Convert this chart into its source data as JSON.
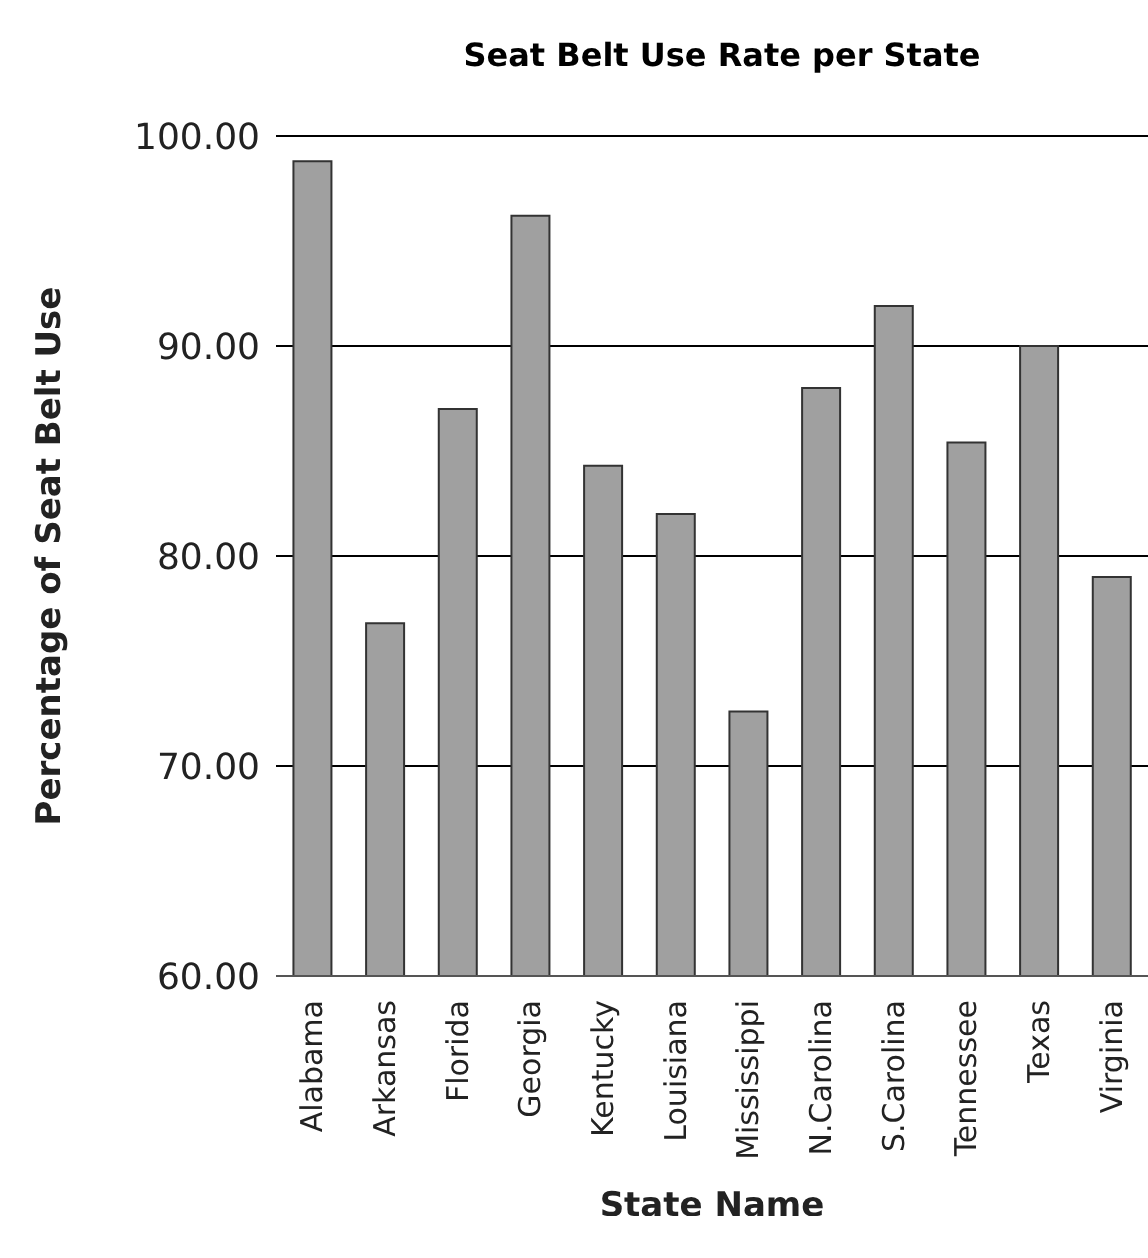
{
  "chart_data": {
    "type": "bar",
    "title": "Seat Belt Use Rate per State",
    "xlabel": "State Name",
    "ylabel": "Percentage of Seat Belt Use",
    "categories": [
      "Alabama",
      "Arkansas",
      "Florida",
      "Georgia",
      "Kentucky",
      "Louisiana",
      "Mississippi",
      "N.Carolina",
      "S.Carolina",
      "Tennessee",
      "Texas",
      "Virginia"
    ],
    "values": [
      98.8,
      76.8,
      87.0,
      96.2,
      84.3,
      82.0,
      72.6,
      88.0,
      91.9,
      85.4,
      90.0,
      79.0
    ],
    "color": "#a0a0a0",
    "ylim": [
      60,
      100
    ],
    "yticks": [
      {
        "value": 60,
        "label": "60.00"
      },
      {
        "value": 70,
        "label": "70.00"
      },
      {
        "value": 80,
        "label": "80.00"
      },
      {
        "value": 90,
        "label": "90.00"
      },
      {
        "value": 100,
        "label": "100.00"
      }
    ],
    "grid": "y"
  }
}
